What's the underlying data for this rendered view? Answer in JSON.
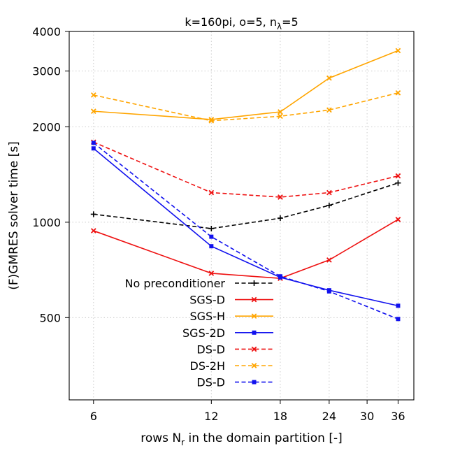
{
  "chart_data": {
    "type": "line",
    "title": {
      "main": "k=160pi, o=5, n",
      "sub": "λ",
      "tail": "=5"
    },
    "xlabel": {
      "main": "rows N",
      "sub": "r",
      "tail": " in the domain partition [-]"
    },
    "ylabel": "(F)GMRES solver time [s]",
    "xscale": "log",
    "yscale": "log",
    "xlim": [
      5.2,
      39.5
    ],
    "ylim": [
      275,
      4000
    ],
    "x": [
      6,
      12,
      18,
      24,
      36
    ],
    "xticks": [
      6,
      12,
      18,
      24,
      30,
      36
    ],
    "xtick_labels": [
      "6",
      "12",
      "18",
      "24",
      "30",
      "36"
    ],
    "yticks": [
      500,
      1000,
      2000,
      3000,
      4000
    ],
    "ytick_labels": [
      "500",
      "1000",
      "2000",
      "3000",
      "4000"
    ],
    "grid": true,
    "legend_position": "lower-left",
    "series": [
      {
        "name": "No preconditioner",
        "color": "#000000",
        "dash": "dashed",
        "marker": "plus",
        "values": [
          1060,
          955,
          1030,
          1130,
          1330
        ]
      },
      {
        "name": "SGS-D",
        "color": "#ee1111",
        "dash": "solid",
        "marker": "x",
        "values": [
          940,
          690,
          665,
          760,
          1020
        ]
      },
      {
        "name": "SGS-H",
        "color": "#ffa500",
        "dash": "solid",
        "marker": "x",
        "values": [
          2240,
          2110,
          2230,
          2850,
          3480
        ]
      },
      {
        "name": "SGS-2D",
        "color": "#1111ee",
        "dash": "solid",
        "marker": "square",
        "values": [
          1710,
          840,
          670,
          610,
          545
        ]
      },
      {
        "name": "DS-D",
        "color": "#ee1111",
        "dash": "dashed",
        "marker": "x",
        "values": [
          1790,
          1240,
          1200,
          1240,
          1400
        ]
      },
      {
        "name": "DS-2H",
        "color": "#ffa500",
        "dash": "dashed",
        "marker": "x",
        "values": [
          2520,
          2090,
          2160,
          2260,
          2560
        ]
      },
      {
        "name": "DS-D",
        "color": "#1111ee",
        "dash": "dashed",
        "marker": "square",
        "values": [
          1780,
          900,
          675,
          605,
          495
        ]
      }
    ]
  }
}
